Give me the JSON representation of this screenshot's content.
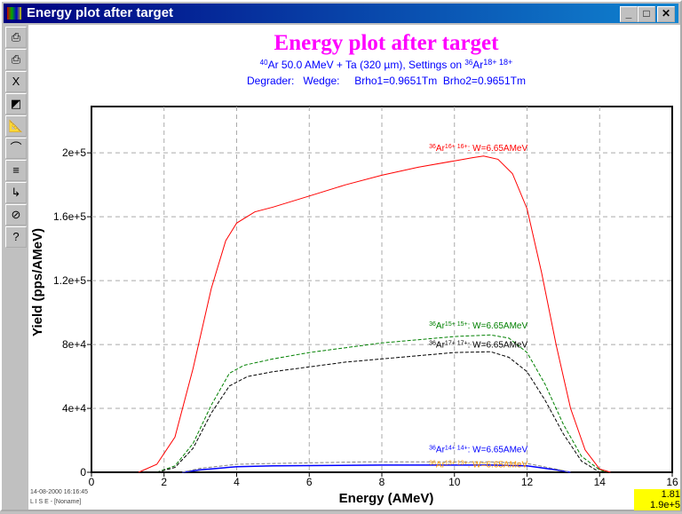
{
  "window": {
    "title": "Energy plot after target",
    "min": "_",
    "max": "□",
    "close": "✕"
  },
  "toolbar": [
    {
      "name": "print-icon",
      "glyph": "⎙"
    },
    {
      "name": "print-color-icon",
      "glyph": "⎙"
    },
    {
      "name": "x-axis-icon",
      "glyph": "X"
    },
    {
      "name": "color-palette-icon",
      "glyph": "◩"
    },
    {
      "name": "plot-settings-icon",
      "glyph": "📐"
    },
    {
      "name": "curve-fit-icon",
      "glyph": "⌒"
    },
    {
      "name": "values-list-icon",
      "glyph": "≡"
    },
    {
      "name": "export-icon",
      "glyph": "↳"
    },
    {
      "name": "zoom-reset-icon",
      "glyph": "⊘"
    },
    {
      "name": "help-icon",
      "glyph": "?"
    }
  ],
  "header": {
    "title": "Energy plot after target",
    "line1_pre": "40",
    "line1": "Ar 50.0 AMeV + Ta (320 µm), Settings on ",
    "line1_sup": "36",
    "line1_post": "Ar",
    "line1_charge": "18+ 18+",
    "line2": "Degrader:   Wedge:     Brho1=0.9651Tm  Brho2=0.9651Tm"
  },
  "footer": {
    "date": "14-08-2000  16:16:45",
    "app": "L I S E - [Noname]"
  },
  "cursor": {
    "x": "1.81",
    "y": "1.9e+5"
  },
  "chart_data": {
    "type": "line",
    "xlabel": "Energy (AMeV)",
    "ylabel": "Yield (pps/AMeV)",
    "xlim": [
      0,
      16
    ],
    "ylim": [
      0,
      229000
    ],
    "xticks": [
      "0",
      "2",
      "4",
      "6",
      "8",
      "10",
      "12",
      "14",
      "16"
    ],
    "yticks": [
      {
        "v": 0,
        "l": "0"
      },
      {
        "v": 40000,
        "l": "4e+4"
      },
      {
        "v": 80000,
        "l": "8e+4"
      },
      {
        "v": 120000,
        "l": "1.2e+5"
      },
      {
        "v": 160000,
        "l": "1.6e+5"
      },
      {
        "v": 200000,
        "l": "2e+5"
      }
    ],
    "grid": true,
    "series": [
      {
        "name": "36Ar 16+ 16+",
        "label": "Ar",
        "mass": "36",
        "charge": "16+ 16+",
        "w": ": W=6.65AMeV",
        "color": "#ff0000",
        "dash": false,
        "lx": 9.3,
        "ly": 200000,
        "x": [
          1.3,
          1.8,
          2.3,
          2.8,
          3.3,
          3.7,
          4.0,
          4.5,
          5,
          6,
          7,
          8,
          9,
          10,
          10.5,
          10.8,
          11.2,
          11.6,
          12,
          12.4,
          12.8,
          13.2,
          13.6,
          14,
          14.3
        ],
        "y": [
          0,
          5000,
          22000,
          65000,
          115000,
          145000,
          156000,
          163000,
          166000,
          173000,
          180000,
          186000,
          191000,
          195000,
          197000,
          198000,
          196000,
          187000,
          165000,
          125000,
          80000,
          40000,
          14000,
          2000,
          0
        ]
      },
      {
        "name": "36Ar 15+ 15+",
        "label": "Ar",
        "mass": "36",
        "charge": "15+ 15+",
        "w": ": W=6.65AMeV",
        "color": "#008000",
        "dash": true,
        "lx": 9.3,
        "ly": 89000,
        "x": [
          1.8,
          2.3,
          2.8,
          3.3,
          3.8,
          4.2,
          5,
          6,
          7,
          8,
          9,
          10,
          11,
          11.5,
          12,
          12.5,
          13,
          13.5,
          14,
          14.2
        ],
        "y": [
          0,
          4000,
          18000,
          42000,
          62000,
          67000,
          71000,
          75000,
          78000,
          81000,
          83000,
          85000,
          86000,
          84000,
          75000,
          55000,
          30000,
          10000,
          1500,
          0
        ]
      },
      {
        "name": "36Ar 17+ 17+",
        "label": "Ar",
        "mass": "36",
        "charge": "17+ 17+",
        "w": ": W=6.65AMeV",
        "color": "#000000",
        "dash": true,
        "lx": 9.3,
        "ly": 77000,
        "x": [
          1.8,
          2.3,
          2.8,
          3.3,
          3.8,
          4.3,
          5,
          6,
          7,
          8,
          9,
          10,
          11,
          11.5,
          12,
          12.5,
          13,
          13.5,
          14
        ],
        "y": [
          0,
          3000,
          15000,
          37000,
          54000,
          60000,
          63000,
          66000,
          69000,
          71000,
          73000,
          75000,
          75500,
          72000,
          63000,
          45000,
          24000,
          7000,
          0
        ]
      },
      {
        "name": "36Ar 14+ 14+",
        "label": "Ar",
        "mass": "36",
        "charge": "14+ 14+",
        "w": ": W=6.65AMeV",
        "color": "#0000ff",
        "dash": false,
        "lx": 9.3,
        "ly": 9500,
        "x": [
          2.5,
          3,
          4,
          5,
          8,
          11,
          12,
          12.8,
          13.2
        ],
        "y": [
          0,
          1500,
          3500,
          4000,
          4500,
          4500,
          4000,
          1500,
          0
        ]
      },
      {
        "name": "36Ar 18+ 18+ (gray)",
        "label": "",
        "mass": "",
        "charge": "",
        "w": "",
        "color": "#808080",
        "dash": true,
        "lx": 0,
        "ly": 0,
        "x": [
          2.5,
          3,
          4,
          5,
          7.5,
          11,
          12,
          12.8,
          13.2
        ],
        "y": [
          0,
          2500,
          5000,
          5500,
          6500,
          6500,
          5500,
          2000,
          0
        ]
      },
      {
        "name": "36Ar 13+ 13+",
        "label": "Ar",
        "mass": "36",
        "charge": "13+ 13+",
        "w": ": W=6.65AMeV",
        "color": "#ff9900",
        "dash": false,
        "lx": 9.3,
        "ly": 2000,
        "x": [],
        "y": []
      }
    ]
  }
}
